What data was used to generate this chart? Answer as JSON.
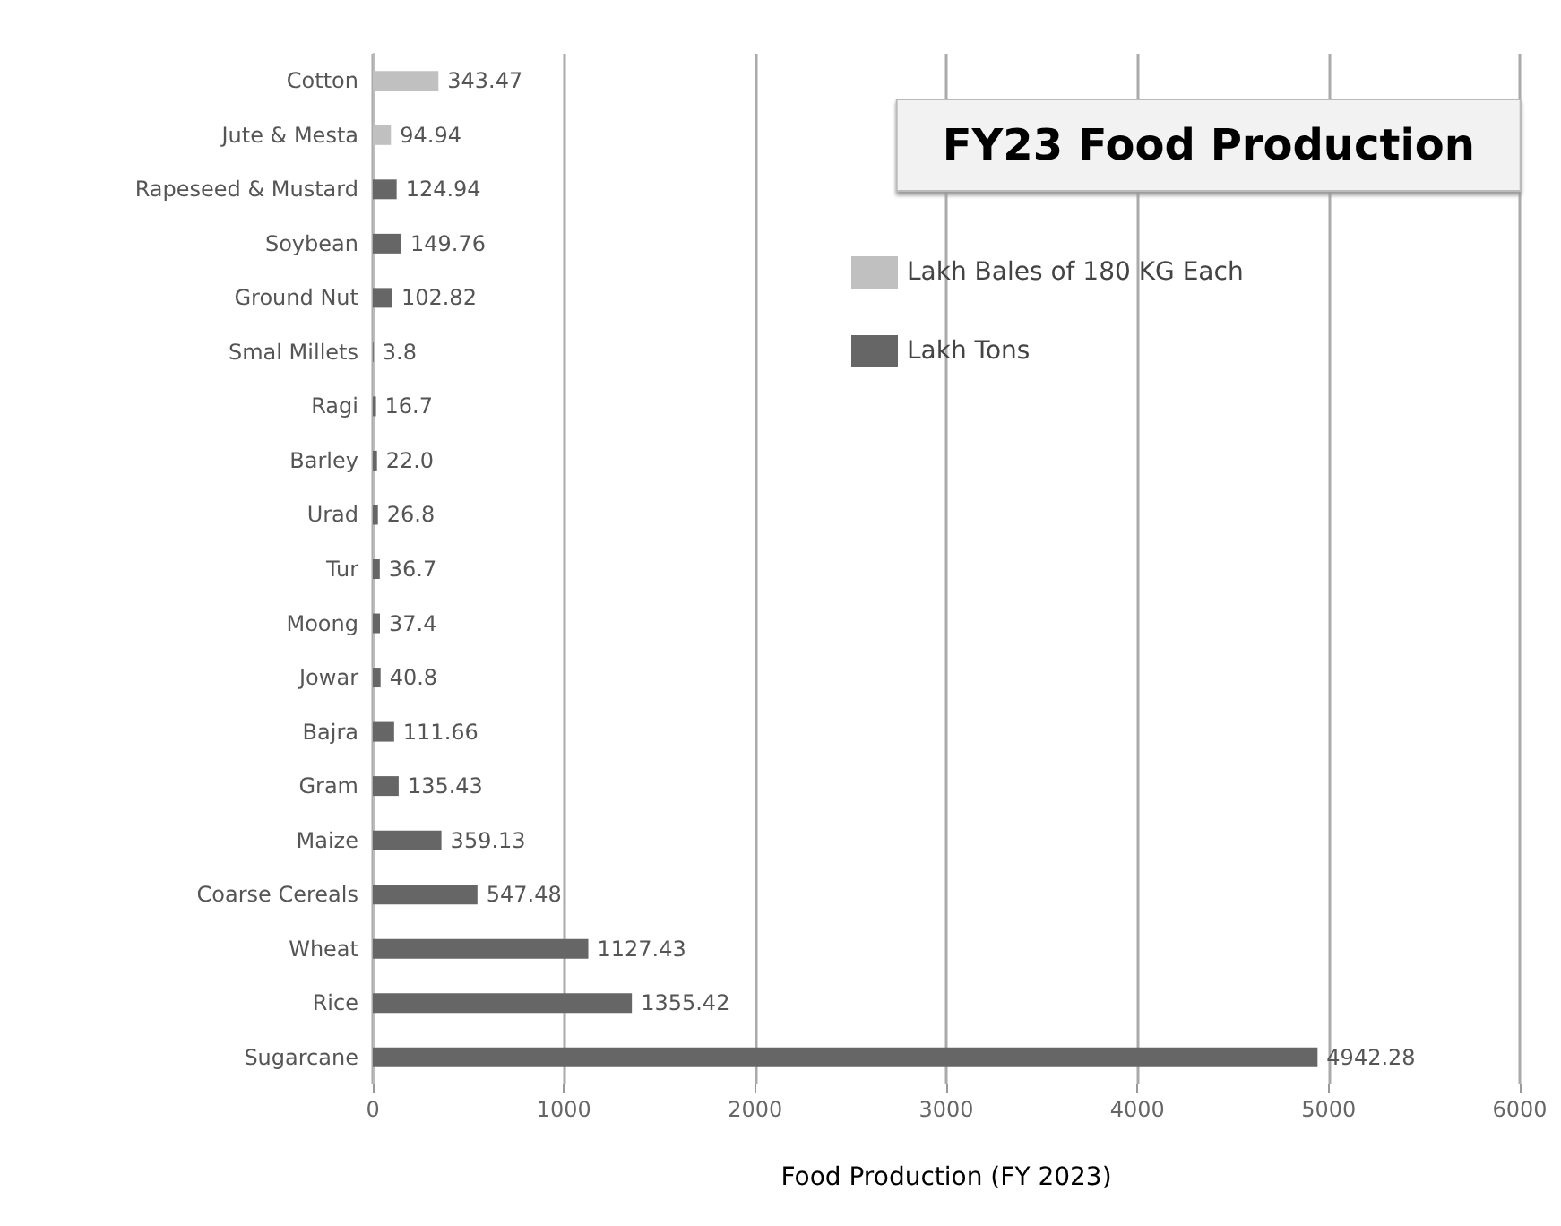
{
  "chart_data": {
    "type": "bar",
    "orientation": "horizontal",
    "title": "FY23 Food Production",
    "xlabel": "Food Production (FY 2023)",
    "categories": [
      "Cotton",
      "Jute & Mesta",
      "Rapeseed & Mustard",
      "Soybean",
      "Ground Nut",
      "Smal Millets",
      "Ragi",
      "Barley",
      "Urad",
      "Tur",
      "Moong",
      "Jowar",
      "Bajra",
      "Gram",
      "Maize",
      "Coarse Cereals",
      "Wheat",
      "Rice",
      "Sugarcane"
    ],
    "series": [
      {
        "name": "Lakh Bales of 180 KG Each",
        "color": "#c0c0c0",
        "values": [
          343.47,
          94.94,
          null,
          null,
          null,
          null,
          null,
          null,
          null,
          null,
          null,
          null,
          null,
          null,
          null,
          null,
          null,
          null,
          null
        ],
        "value_labels": [
          "343.47",
          "94.94",
          null,
          null,
          null,
          null,
          null,
          null,
          null,
          null,
          null,
          null,
          null,
          null,
          null,
          null,
          null,
          null,
          null
        ]
      },
      {
        "name": "Lakh Tons",
        "color": "#666666",
        "values": [
          null,
          null,
          124.94,
          149.76,
          102.82,
          3.8,
          16.7,
          22.0,
          26.8,
          36.7,
          37.4,
          40.8,
          111.66,
          135.43,
          359.13,
          547.48,
          1127.43,
          1355.42,
          4942.28
        ],
        "value_labels": [
          null,
          null,
          "124.94",
          "149.76",
          "102.82",
          "3.8",
          "16.7",
          "22.0",
          "26.8",
          "36.7",
          "37.4",
          "40.8",
          "111.66",
          "135.43",
          "359.13",
          "547.48",
          "1127.43",
          "1355.42",
          "4942.28"
        ]
      }
    ],
    "xlim": [
      0,
      6000
    ],
    "xticks": [
      0,
      1000,
      2000,
      3000,
      4000,
      5000,
      6000
    ],
    "grid": "x",
    "legend": "top right"
  }
}
